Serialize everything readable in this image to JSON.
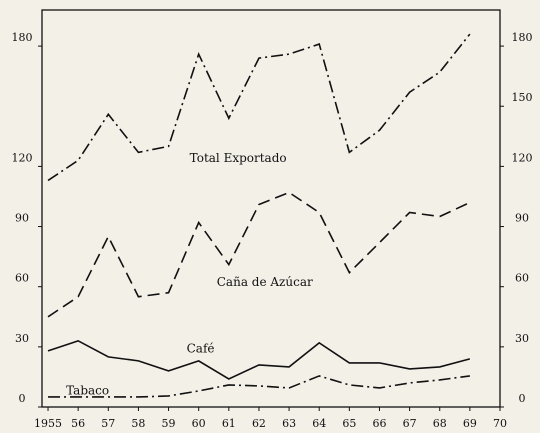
{
  "chart_data": {
    "type": "line",
    "x": [
      1955,
      1956,
      1957,
      1958,
      1959,
      1960,
      1961,
      1962,
      1963,
      1964,
      1965,
      1966,
      1967,
      1968,
      1969
    ],
    "series": [
      {
        "name": "Total Exportado",
        "color": "#111111",
        "dash": "dashdot",
        "values": [
          113,
          123,
          146,
          127,
          130,
          176,
          144,
          174,
          176,
          181,
          127,
          138,
          157,
          167,
          186
        ]
      },
      {
        "name": "Caña de Azúcar",
        "color": "#111111",
        "dash": "dashed",
        "values": [
          45,
          55,
          85,
          55,
          57,
          92,
          71,
          101,
          107,
          97,
          67,
          82,
          97,
          95,
          102
        ]
      },
      {
        "name": "Café",
        "color": "#111111",
        "dash": "solid",
        "values": [
          28,
          33,
          25,
          23,
          18,
          23,
          14,
          21,
          20,
          32,
          22,
          22,
          19,
          20,
          24
        ]
      },
      {
        "name": "Tabaco",
        "color": "#111111",
        "dash": "dashdot",
        "values": [
          5,
          5,
          5,
          5,
          5.5,
          8,
          11,
          10.5,
          9.5,
          15.5,
          11,
          9.5,
          12,
          13.5,
          15.5
        ]
      }
    ],
    "xlim": [
      1954.8,
      1970
    ],
    "xticks": [
      1955,
      {
        "value": 1956,
        "label": "56"
      },
      {
        "value": 1957,
        "label": "57"
      },
      {
        "value": 1958,
        "label": "58"
      },
      {
        "value": 1959,
        "label": "59"
      },
      {
        "value": 1960,
        "label": "60"
      },
      {
        "value": 1961,
        "label": "61"
      },
      {
        "value": 1962,
        "label": "62"
      },
      {
        "value": 1963,
        "label": "63"
      },
      {
        "value": 1964,
        "label": "64"
      },
      {
        "value": 1965,
        "label": "65"
      },
      {
        "value": 1966,
        "label": "66"
      },
      {
        "value": 1967,
        "label": "67"
      },
      {
        "value": 1968,
        "label": "68"
      },
      {
        "value": 1969,
        "label": "69"
      },
      {
        "value": 1970,
        "label": "70"
      }
    ],
    "ylim": [
      0,
      198
    ],
    "yticks": [
      0,
      30,
      60,
      90,
      120,
      180
    ],
    "y2lim": [
      0,
      198
    ],
    "y2ticks": [
      0,
      30,
      60,
      90,
      120,
      150,
      180
    ]
  }
}
